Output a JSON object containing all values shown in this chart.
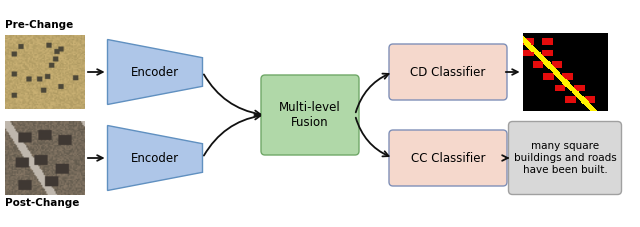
{
  "bg_color": "#ffffff",
  "img_size": [
    6.4,
    2.27
  ],
  "dpi": 100,
  "encoder_color": "#aec6e8",
  "encoder_edge_color": "#6090c0",
  "fusion_color": "#b0d8a8",
  "fusion_edge_color": "#70a868",
  "classifier_color": "#f5d8cc",
  "classifier_edge_color": "#8090b8",
  "text_box_color": "#d8d8d8",
  "text_box_edge_color": "#a0a0a0",
  "arrow_color": "#111111",
  "label_pre": "Pre-Change",
  "label_post": "Post-Change",
  "label_enc1": "Encoder",
  "label_enc2": "Encoder",
  "label_fusion": "Multi-level\nFusion",
  "label_cd": "CD Classifier",
  "label_cc": "CC Classifier",
  "label_text": "many square\nbuildings and roads\nhave been built.",
  "font_size": 8.5,
  "small_font": 7.5,
  "label_font": 7.5
}
